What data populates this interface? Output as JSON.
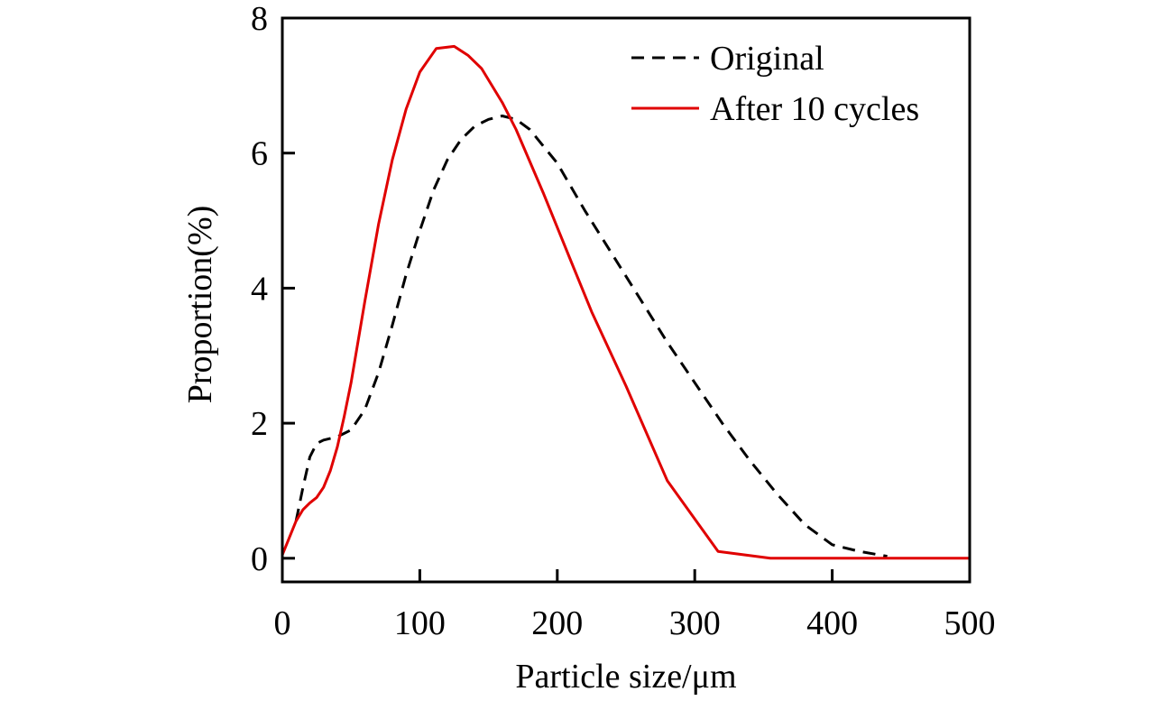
{
  "chart_data": {
    "type": "line",
    "title": "",
    "xlabel": "Particle size/μm",
    "ylabel": "Proportion(%)",
    "xlim": [
      0,
      500
    ],
    "ylim": [
      -0.35,
      8
    ],
    "xticks": [
      0,
      100,
      200,
      300,
      400,
      500
    ],
    "yticks": [
      0,
      2,
      4,
      6,
      8
    ],
    "x_tick_labels": [
      "0",
      "100",
      "200",
      "300",
      "400",
      "500"
    ],
    "y_tick_labels": [
      "0",
      "2",
      "4",
      "6",
      "8"
    ],
    "grid": false,
    "legend_position": "top-right",
    "series": [
      {
        "name": "Original",
        "style": "dashed",
        "color": "#000000",
        "x": [
          10,
          15,
          20,
          25,
          30,
          40,
          50,
          60,
          70,
          80,
          90,
          100,
          110,
          120,
          130,
          140,
          150,
          160,
          170,
          180,
          200,
          220,
          240,
          260,
          280,
          300,
          320,
          340,
          360,
          380,
          400,
          420,
          440
        ],
        "y": [
          0.55,
          1.05,
          1.5,
          1.7,
          1.75,
          1.8,
          1.9,
          2.2,
          2.75,
          3.45,
          4.2,
          4.85,
          5.45,
          5.9,
          6.2,
          6.4,
          6.5,
          6.55,
          6.5,
          6.35,
          5.85,
          5.15,
          4.5,
          3.85,
          3.2,
          2.6,
          2.0,
          1.45,
          0.95,
          0.5,
          0.2,
          0.1,
          0.03
        ]
      },
      {
        "name": "After 10 cycles",
        "style": "solid",
        "color": "#e00000",
        "x": [
          0,
          5,
          10,
          15,
          20,
          25,
          30,
          35,
          40,
          45,
          50,
          60,
          70,
          80,
          90,
          100,
          112,
          125,
          135,
          145,
          160,
          170,
          190,
          210,
          225,
          250,
          280,
          317,
          355,
          400,
          450,
          500
        ],
        "y": [
          0.05,
          0.3,
          0.55,
          0.72,
          0.82,
          0.9,
          1.05,
          1.3,
          1.65,
          2.1,
          2.6,
          3.8,
          4.95,
          5.9,
          6.65,
          7.2,
          7.55,
          7.58,
          7.45,
          7.25,
          6.75,
          6.35,
          5.4,
          4.4,
          3.65,
          2.55,
          1.15,
          0.1,
          0.0,
          0.0,
          0.0,
          0.0
        ]
      }
    ]
  }
}
